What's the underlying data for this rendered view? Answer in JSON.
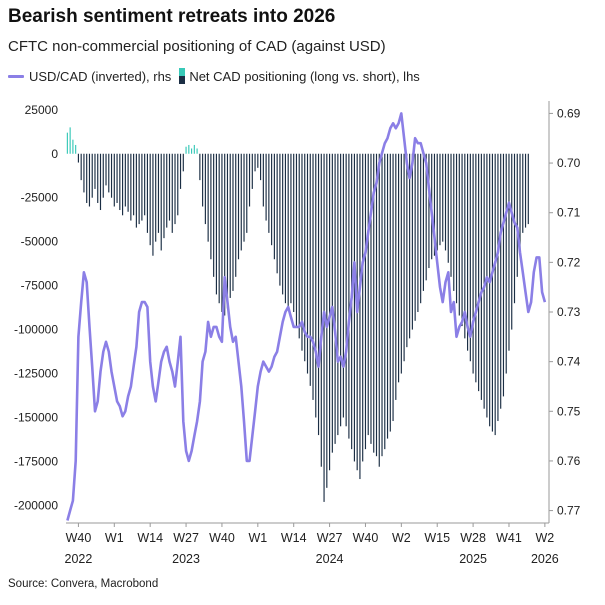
{
  "title": "Bearish sentiment retreats into 2026",
  "subtitle": "CFTC non-commercial positioning of CAD (against USD)",
  "legend": {
    "line_label": "USD/CAD (inverted), rhs",
    "bars_label": "Net CAD positioning (long vs. short), lhs"
  },
  "source": "Source: Convera, Macrobond",
  "colors": {
    "line": "#8b7fe6",
    "bar_negative": "#1b2e44",
    "bar_positive": "#38c9b8",
    "axis": "#9a9a9a"
  },
  "chart_data": {
    "type": "bar+line",
    "left_axis": {
      "ylim": [
        -210000,
        30000
      ],
      "ticks": [
        25000,
        0,
        -25000,
        -50000,
        -75000,
        -100000,
        -125000,
        -150000,
        -175000,
        -200000
      ],
      "tick_labels": [
        "25000",
        "0",
        "-25000",
        "-50000",
        "-75000",
        "-100000",
        "-125000",
        "-150000",
        "-175000",
        "-200000"
      ]
    },
    "right_axis": {
      "inverted": true,
      "ylim": [
        0.6875,
        0.7725
      ],
      "ticks": [
        0.77,
        0.76,
        0.75,
        0.74,
        0.73,
        0.72,
        0.71,
        0.7,
        0.69
      ],
      "tick_labels": [
        "0.77",
        "0.76",
        "0.75",
        "0.74",
        "0.73",
        "0.72",
        "0.71",
        "0.70",
        "0.69"
      ]
    },
    "x_axis": {
      "week_labels": [
        "W40",
        "W1",
        "W14",
        "W27",
        "W40",
        "W1",
        "W14",
        "W27",
        "W40",
        "W2",
        "W15",
        "W28",
        "W41",
        "W2"
      ],
      "week_positions": [
        4,
        17,
        30,
        43,
        56,
        69,
        82,
        95,
        108,
        121,
        134,
        147,
        160,
        173
      ],
      "year_labels": [
        "2022",
        "2023",
        "2024",
        "2025",
        "2026"
      ],
      "year_positions": [
        4,
        43,
        95,
        147,
        173
      ],
      "xlim": [
        -0.5,
        174.5
      ]
    },
    "series": [
      {
        "name": "Net CAD positioning (long vs. short), lhs",
        "kind": "bar",
        "axis": "left",
        "values": [
          12000,
          15000,
          8000,
          5000,
          -5000,
          -15000,
          -22000,
          -28000,
          -30000,
          -25000,
          -20000,
          -28000,
          -32000,
          -25000,
          -18000,
          -22000,
          -25000,
          -30000,
          -28000,
          -32000,
          -35000,
          -30000,
          -33000,
          -38000,
          -35000,
          -42000,
          -40000,
          -38000,
          -35000,
          -45000,
          -52000,
          -58000,
          -50000,
          -45000,
          -55000,
          -48000,
          -42000,
          -38000,
          -45000,
          -40000,
          -35000,
          -20000,
          -10000,
          4000,
          5000,
          3000,
          5000,
          3000,
          -15000,
          -30000,
          -40000,
          -50000,
          -60000,
          -70000,
          -80000,
          -85000,
          -90000,
          -92000,
          -88000,
          -82000,
          -78000,
          -70000,
          -60000,
          -55000,
          -50000,
          -45000,
          -30000,
          -20000,
          -10000,
          -8000,
          -15000,
          -30000,
          -38000,
          -45000,
          -52000,
          -60000,
          -68000,
          -75000,
          -80000,
          -85000,
          -88000,
          -85000,
          -90000,
          -98000,
          -105000,
          -112000,
          -118000,
          -125000,
          -132000,
          -140000,
          -150000,
          -160000,
          -178000,
          -198000,
          -190000,
          -180000,
          -170000,
          -165000,
          -160000,
          -155000,
          -150000,
          -155000,
          -162000,
          -168000,
          -175000,
          -180000,
          -185000,
          -175000,
          -168000,
          -160000,
          -165000,
          -170000,
          -172000,
          -178000,
          -172000,
          -168000,
          -162000,
          -158000,
          -152000,
          -140000,
          -130000,
          -125000,
          -118000,
          -110000,
          -105000,
          -100000,
          -95000,
          -90000,
          -85000,
          -78000,
          -72000,
          -65000,
          -60000,
          -58000,
          -55000,
          -52000,
          -50000,
          -55000,
          -62000,
          -70000,
          -78000,
          -85000,
          -92000,
          -98000,
          -105000,
          -112000,
          -118000,
          -125000,
          -130000,
          -135000,
          -140000,
          -145000,
          -150000,
          -155000,
          -158000,
          -160000,
          -152000,
          -145000,
          -138000,
          -125000,
          -112000,
          -100000,
          -85000,
          -70000,
          -55000,
          -45000,
          -42000,
          -40000
        ]
      },
      {
        "name": "USD/CAD (inverted), rhs",
        "kind": "line",
        "axis": "right",
        "values": [
          0.772,
          0.77,
          0.768,
          0.76,
          0.735,
          0.728,
          0.722,
          0.724,
          0.733,
          0.741,
          0.75,
          0.748,
          0.742,
          0.738,
          0.736,
          0.738,
          0.742,
          0.745,
          0.748,
          0.749,
          0.751,
          0.75,
          0.747,
          0.745,
          0.741,
          0.737,
          0.73,
          0.728,
          0.728,
          0.729,
          0.74,
          0.745,
          0.748,
          0.744,
          0.74,
          0.738,
          0.737,
          0.74,
          0.742,
          0.745,
          0.74,
          0.735,
          0.752,
          0.758,
          0.76,
          0.758,
          0.755,
          0.752,
          0.748,
          0.74,
          0.738,
          0.732,
          0.735,
          0.733,
          0.733,
          0.735,
          0.736,
          0.723,
          0.728,
          0.733,
          0.736,
          0.735,
          0.74,
          0.745,
          0.752,
          0.76,
          0.76,
          0.755,
          0.75,
          0.745,
          0.742,
          0.74,
          0.741,
          0.742,
          0.741,
          0.739,
          0.738,
          0.735,
          0.732,
          0.73,
          0.729,
          0.731,
          0.733,
          0.733,
          0.733,
          0.732,
          0.734,
          0.735,
          0.735,
          0.736,
          0.738,
          0.741,
          0.735,
          0.73,
          0.733,
          0.731,
          0.729,
          0.734,
          0.74,
          0.739,
          0.741,
          0.738,
          0.732,
          0.727,
          0.72,
          0.73,
          0.725,
          0.72,
          0.718,
          0.714,
          0.71,
          0.706,
          0.704,
          0.7,
          0.698,
          0.696,
          0.695,
          0.693,
          0.692,
          0.693,
          0.692,
          0.69,
          0.695,
          0.7,
          0.703,
          0.7,
          0.695,
          0.696,
          0.696,
          0.698,
          0.7,
          0.705,
          0.71,
          0.715,
          0.72,
          0.725,
          0.728,
          0.724,
          0.722,
          0.73,
          0.728,
          0.735,
          0.733,
          0.732,
          0.73,
          0.733,
          0.735,
          0.732,
          0.73,
          0.728,
          0.726,
          0.725,
          0.723,
          0.724,
          0.722,
          0.72,
          0.718,
          0.714,
          0.712,
          0.71,
          0.708,
          0.71,
          0.712,
          0.713,
          0.718,
          0.722,
          0.726,
          0.73,
          0.728,
          0.722,
          0.719,
          0.719,
          0.726,
          0.728
        ]
      }
    ]
  }
}
